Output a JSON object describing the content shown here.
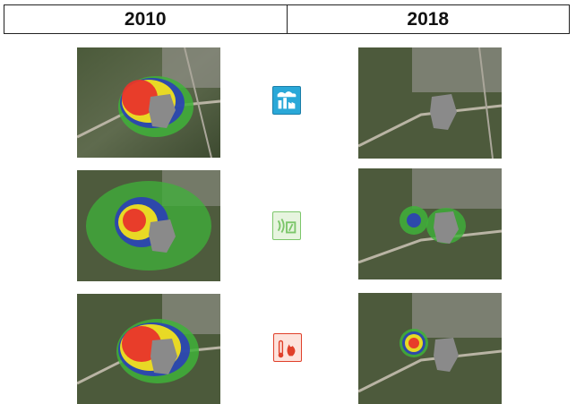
{
  "header": {
    "left_year": "2010",
    "right_year": "2018"
  },
  "rows": [
    {
      "icon": "toxic-gas-cloud-icon",
      "icon_color": "#2aa8d8"
    },
    {
      "icon": "explosion-pressure-icon",
      "icon_color": "#7cc66a"
    },
    {
      "icon": "fire-thermal-radiation-icon",
      "icon_color": "#e0402a"
    }
  ],
  "zone_colors": {
    "red": "#e8352a",
    "yellow": "#f2e21e",
    "blue": "#2b3fb8",
    "green": "#3fb23a",
    "site": "#8a8a8a"
  }
}
